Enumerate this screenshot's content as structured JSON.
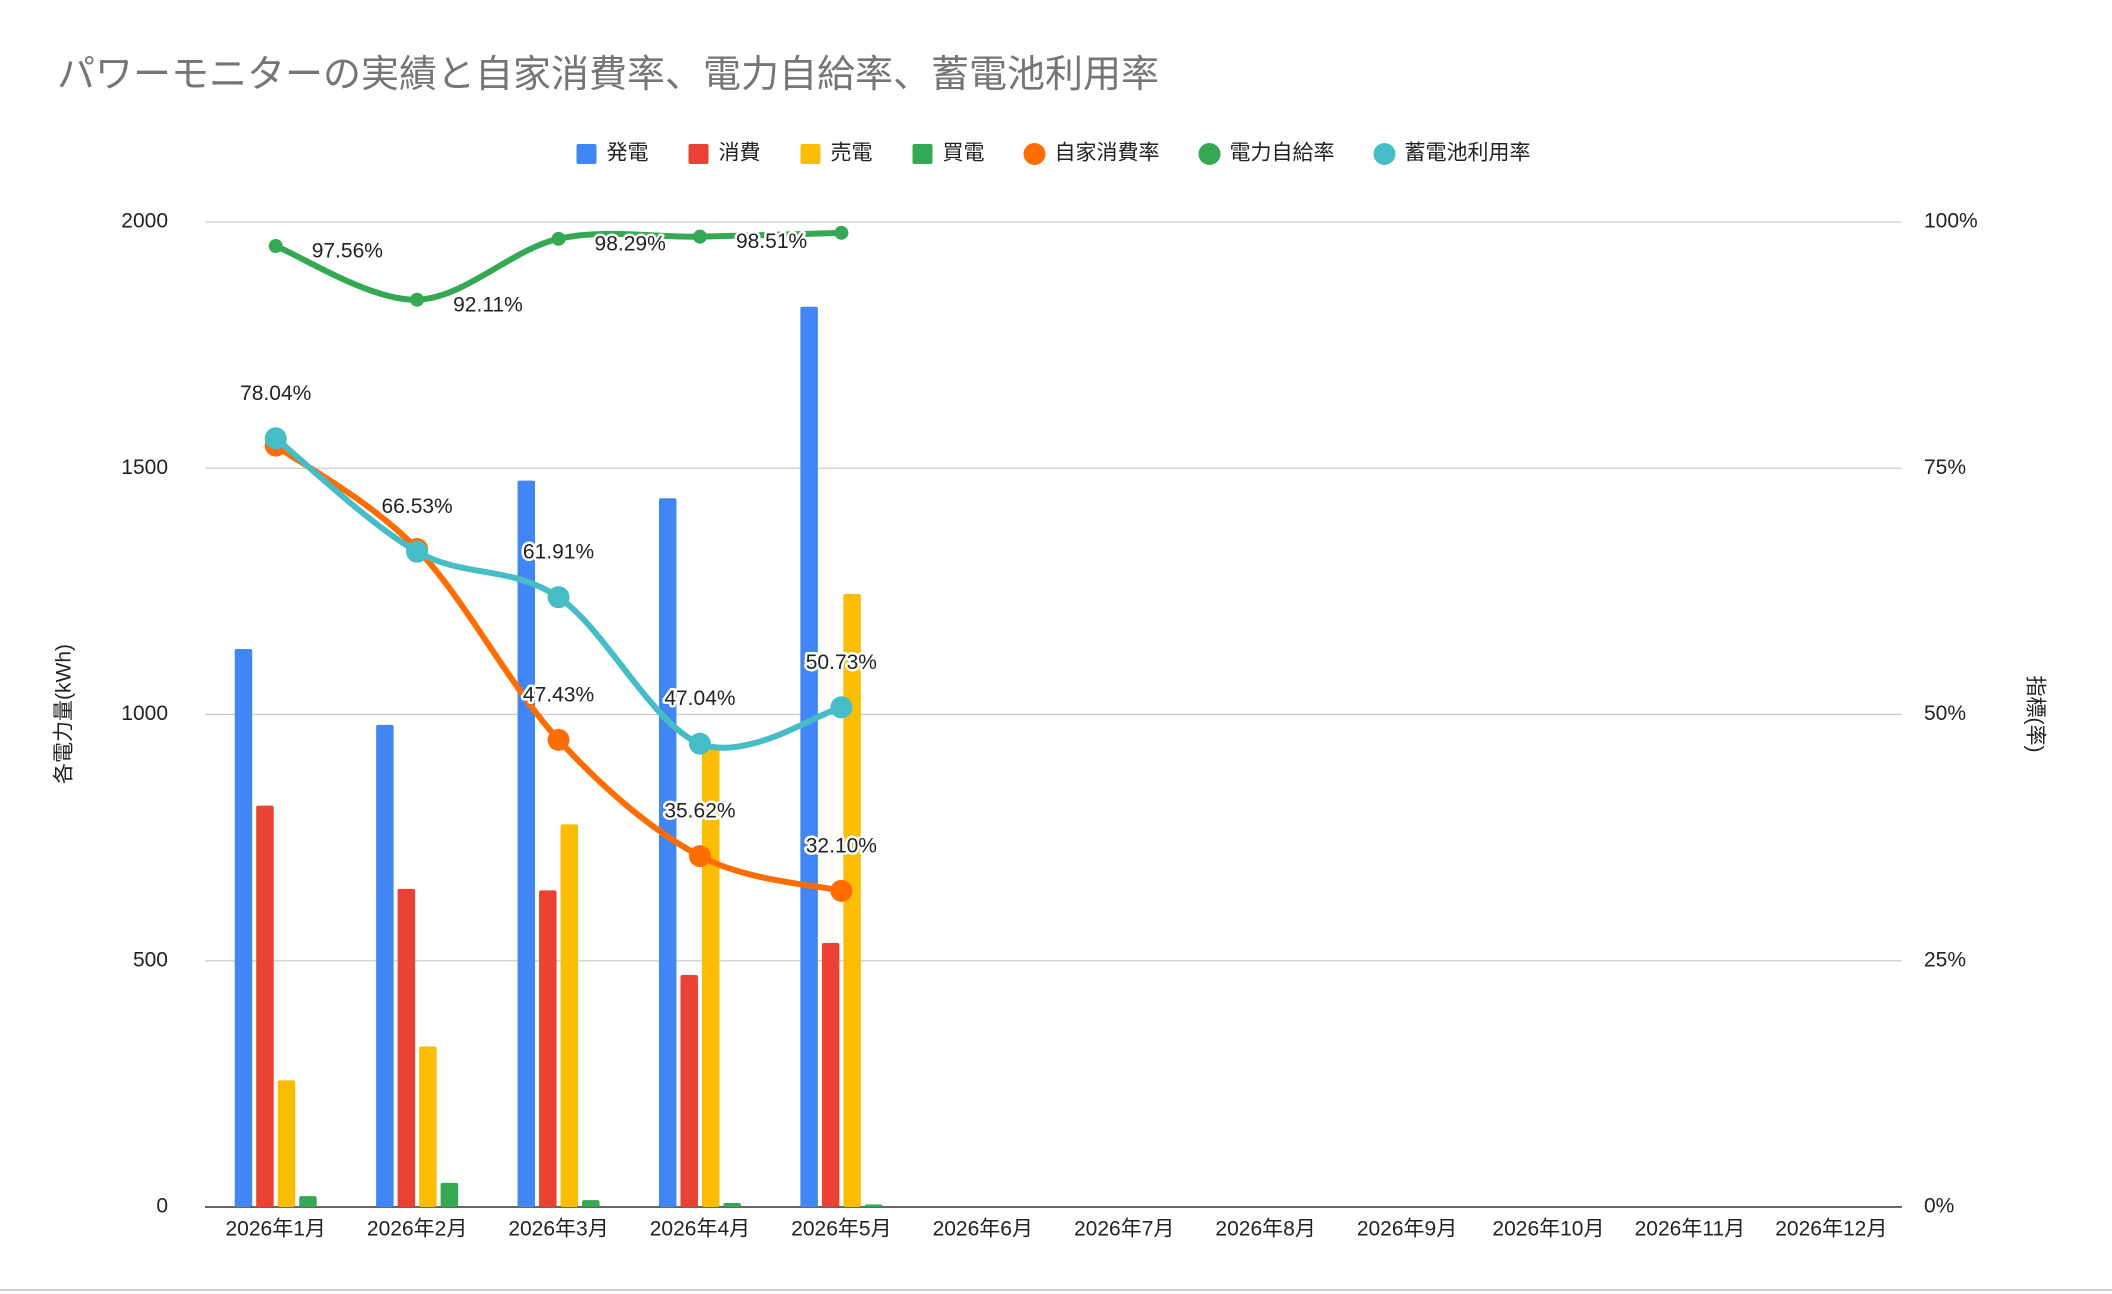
{
  "chart_data": {
    "type": "combo",
    "title": "パワーモニターの実績と自家消費率、電力自給率、蓄電池利用率",
    "y_label": "各電力量(kWh)",
    "y2_label": "指標(率)",
    "legend": "top",
    "grid": true,
    "categories": [
      "2026年1月",
      "2026年2月",
      "2026年3月",
      "2026年4月",
      "2026年5月",
      "2026年6月",
      "2026年7月",
      "2026年8月",
      "2026年9月",
      "2026年10月",
      "2026年11月",
      "2026年12月"
    ],
    "ylim": [
      0,
      2000
    ],
    "yticks": [
      0,
      500,
      1000,
      1500,
      2000
    ],
    "y2lim": [
      0,
      100
    ],
    "y2ticks": [
      {
        "value": 0,
        "label": "0%"
      },
      {
        "value": 25,
        "label": "25%"
      },
      {
        "value": 50,
        "label": "50%"
      },
      {
        "value": 75,
        "label": "75%"
      },
      {
        "value": 100,
        "label": "100%"
      }
    ],
    "series": [
      {
        "name": "発電",
        "type": "bar",
        "color": "#4285f4",
        "values": [
          1133,
          979,
          1475,
          1439,
          1828,
          null,
          null,
          null,
          null,
          null,
          null,
          null
        ]
      },
      {
        "name": "消費",
        "type": "bar",
        "color": "#ea4335",
        "values": [
          815,
          646,
          643,
          471,
          536,
          null,
          null,
          null,
          null,
          null,
          null,
          null
        ]
      },
      {
        "name": "売電",
        "type": "bar",
        "color": "#fbbc04",
        "values": [
          257,
          326,
          777,
          933,
          1245,
          null,
          null,
          null,
          null,
          null,
          null,
          null
        ]
      },
      {
        "name": "買電",
        "type": "bar",
        "color": "#34a853",
        "values": [
          22,
          49,
          14,
          8,
          5,
          null,
          null,
          null,
          null,
          null,
          null,
          null
        ]
      },
      {
        "name": "自家消費率",
        "type": "line",
        "axis": "y2",
        "color": "#ff6d01",
        "values": [
          77.3,
          66.8,
          47.43,
          35.62,
          32.1,
          null,
          null,
          null,
          null,
          null,
          null,
          null
        ],
        "value_labels": [
          null,
          null,
          "47.43%",
          "35.62%",
          "32.10%",
          null,
          null,
          null,
          null,
          null,
          null,
          null
        ]
      },
      {
        "name": "電力自給率",
        "type": "line",
        "axis": "y2",
        "color": "#34a853",
        "values": [
          97.56,
          92.11,
          98.29,
          98.51,
          98.9,
          null,
          null,
          null,
          null,
          null,
          null,
          null
        ],
        "value_labels": [
          "97.56%",
          "92.11%",
          "98.29%",
          "98.51%",
          null,
          null,
          null,
          null,
          null,
          null,
          null,
          null
        ]
      },
      {
        "name": "蓄電池利用率",
        "type": "line",
        "axis": "y2",
        "color": "#46bdc6",
        "values": [
          78.04,
          66.53,
          61.91,
          47.04,
          50.73,
          null,
          null,
          null,
          null,
          null,
          null,
          null
        ],
        "value_labels": [
          "78.04%",
          "66.53%",
          "61.91%",
          "47.04%",
          "50.73%",
          null,
          null,
          null,
          null,
          null,
          null,
          null
        ]
      }
    ]
  }
}
